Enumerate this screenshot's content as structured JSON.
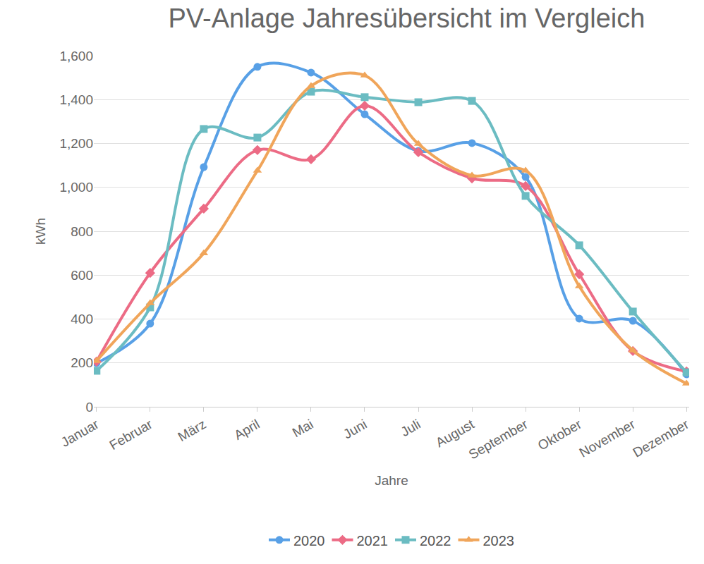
{
  "chart_data": {
    "type": "line",
    "title": "PV-Anlage Jahresübersicht im Vergleich",
    "x_label": "Jahre",
    "y_label": "kWh",
    "categories": [
      "Januar",
      "Februar",
      "März",
      "April",
      "Mai",
      "Juni",
      "Juli",
      "August",
      "September",
      "Oktober",
      "November",
      "Dezember"
    ],
    "series": [
      {
        "name": "2020",
        "color": "#58a0e6",
        "marker": "circle",
        "line_style": "spline",
        "values": [
          199,
          379,
          1092,
          1549,
          1523,
          1333,
          1166,
          1202,
          1047,
          402,
          392,
          148
        ]
      },
      {
        "name": "2021",
        "color": "#ec6b85",
        "marker": "diamond",
        "line_style": "spline",
        "values": [
          206,
          610,
          903,
          1170,
          1128,
          1372,
          1160,
          1041,
          1006,
          604,
          254,
          161
        ]
      },
      {
        "name": "2022",
        "color": "#6bbcc2",
        "marker": "square",
        "line_style": "spline",
        "values": [
          164,
          453,
          1266,
          1227,
          1436,
          1411,
          1388,
          1394,
          961,
          736,
          434,
          157
        ]
      },
      {
        "name": "2023",
        "color": "#f0a55a",
        "marker": "triangle-up",
        "line_style": "spline",
        "values": [
          209,
          472,
          700,
          1076,
          1462,
          1510,
          1198,
          1054,
          1076,
          549,
          257,
          106
        ]
      }
    ],
    "ylim": [
      0,
      1600
    ],
    "yticks": [
      0,
      200,
      400,
      600,
      800,
      {
        "value": 1000,
        "label": "1,000"
      },
      {
        "value": 1200,
        "label": "1,200"
      },
      {
        "value": 1400,
        "label": "1,400"
      },
      {
        "value": 1600,
        "label": "1,600"
      }
    ],
    "grid": true,
    "legend": "bottom"
  }
}
